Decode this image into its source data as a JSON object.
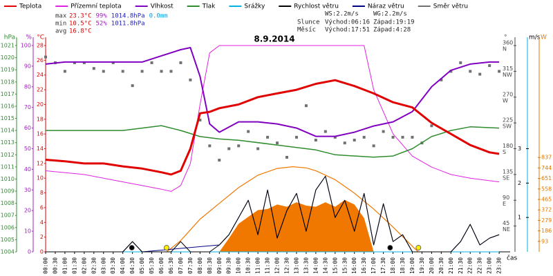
{
  "chart_data": {
    "type": "line",
    "title": "8.9.2014",
    "left_units": [
      "hPa",
      "%",
      "°C"
    ],
    "right_units": [
      "°",
      "m/s",
      "W"
    ],
    "xlabel": "čas",
    "stats": [
      {
        "label": "max",
        "items": [
          "23.3°C",
          "99%",
          "1014.8hPa",
          "0.0mm"
        ]
      },
      {
        "label": "min",
        "items": [
          "10.5°C",
          "52%",
          "1011.8hPa"
        ]
      },
      {
        "label": "avg",
        "items": [
          "16.8°C"
        ]
      }
    ],
    "info": {
      "ws": "WS:2.2m/s",
      "wg": "WG:2.2m/s",
      "sun_label": "Slunce",
      "sun_rise": "Východ:06:16",
      "sun_set": "Západ:19:19",
      "moon_label": "Měsíc",
      "moon_rise": "Východ:17:51",
      "moon_set": "Západ:4:28"
    },
    "xlim": [
      0,
      24
    ],
    "xticks": [
      {
        "value": 0,
        "label": "00:00"
      },
      {
        "value": 0.5,
        "label": "00:30"
      },
      {
        "value": 1,
        "label": "01:00"
      },
      {
        "value": 1.5,
        "label": "01:30"
      },
      {
        "value": 2,
        "label": "02:00"
      },
      {
        "value": 2.5,
        "label": "02:30"
      },
      {
        "value": 3,
        "label": "03:00"
      },
      {
        "value": 3.5,
        "label": "03:30"
      },
      {
        "value": 4,
        "label": "04:00"
      },
      {
        "value": 4.5,
        "label": "04:30"
      },
      {
        "value": 5,
        "label": "05:00"
      },
      {
        "value": 5.5,
        "label": "05:30"
      },
      {
        "value": 6,
        "label": "06:00"
      },
      {
        "value": 6.5,
        "label": "06:30"
      },
      {
        "value": 7,
        "label": "07:00"
      },
      {
        "value": 7.5,
        "label": "07:30"
      },
      {
        "value": 8,
        "label": "08:00"
      },
      {
        "value": 8.5,
        "label": "08:30"
      },
      {
        "value": 9,
        "label": "09:00"
      },
      {
        "value": 9.5,
        "label": "09:30"
      },
      {
        "value": 10,
        "label": "10:00"
      },
      {
        "value": 10.5,
        "label": "10:30"
      },
      {
        "value": 11,
        "label": "11:00"
      },
      {
        "value": 11.5,
        "label": "11:30"
      },
      {
        "value": 12,
        "label": "12:00"
      },
      {
        "value": 12.5,
        "label": "12:30"
      },
      {
        "value": 13,
        "label": "13:00"
      },
      {
        "value": 13.5,
        "label": "13:30"
      },
      {
        "value": 14,
        "label": "14:00"
      },
      {
        "value": 14.5,
        "label": "14:30"
      },
      {
        "value": 15,
        "label": "15:00"
      },
      {
        "value": 15.5,
        "label": "15:30"
      },
      {
        "value": 16,
        "label": "16:00"
      },
      {
        "value": 16.5,
        "label": "16:30"
      },
      {
        "value": 17,
        "label": "17:00"
      },
      {
        "value": 17.5,
        "label": "17:30"
      },
      {
        "value": 18,
        "label": "18:00"
      },
      {
        "value": 18.5,
        "label": "18:30"
      },
      {
        "value": 19,
        "label": "19:00"
      },
      {
        "value": 19.5,
        "label": "19:30"
      },
      {
        "value": 20,
        "label": "20:00"
      },
      {
        "value": 20.5,
        "label": "20:30"
      },
      {
        "value": 21,
        "label": "21:00"
      },
      {
        "value": 21.5,
        "label": "21:30"
      },
      {
        "value": 22,
        "label": "22:00"
      },
      {
        "value": 22.5,
        "label": "22:30"
      },
      {
        "value": 23,
        "label": "23:00"
      },
      {
        "value": 23.5,
        "label": "23:30"
      }
    ],
    "axes": {
      "hpa": {
        "lim": [
          1004,
          1021
        ],
        "ticks": [
          1004,
          1005,
          1006,
          1007,
          1008,
          1009,
          1010,
          1011,
          1012,
          1013,
          1014,
          1015,
          1016,
          1017,
          1018,
          1019,
          1020,
          1021
        ],
        "color": "#2e8b2e"
      },
      "pct": {
        "lim": [
          0,
          100
        ],
        "ticks": [
          0,
          10,
          20,
          30,
          40,
          50,
          60,
          70,
          80,
          90,
          100
        ],
        "color": "#a020c0"
      },
      "temp": {
        "lim": [
          0,
          28
        ],
        "ticks": [
          0,
          2,
          4,
          6,
          8,
          10,
          12,
          14,
          16,
          18,
          20,
          22,
          24,
          26,
          28
        ],
        "color": "#e00000"
      },
      "deg": {
        "lim": [
          0,
          360
        ],
        "ticks": [
          45,
          90,
          135,
          180,
          225,
          270,
          315,
          360
        ],
        "directions": [
          "NE",
          "E",
          "SE",
          "S",
          "SW",
          "W",
          "NW",
          "N"
        ],
        "color": "#444444"
      },
      "ms": {
        "lim": [
          0,
          6
        ],
        "ticks": [
          1,
          2,
          3
        ],
        "color": "#000000"
      },
      "w": {
        "lim": [
          0,
          1830
        ],
        "ticks": [
          93,
          186,
          279,
          372,
          465,
          558,
          651,
          744,
          837
        ],
        "color": "#e07800"
      }
    },
    "series": [
      {
        "name": "Teplota",
        "color": "#e00000",
        "axis": "temp",
        "width": 3,
        "x": [
          0,
          1,
          2,
          3,
          4,
          5,
          6,
          6.5,
          7,
          7.5,
          8,
          8.5,
          9,
          10,
          11,
          12,
          13,
          14,
          15,
          16,
          17,
          18,
          19,
          20,
          21,
          22,
          23,
          23.5
        ],
        "values": [
          12.5,
          12.3,
          12,
          12,
          11.6,
          11.3,
          10.8,
          10.5,
          11,
          14,
          18.8,
          19,
          19.5,
          20,
          21,
          21.5,
          22,
          22.8,
          23.3,
          22.5,
          21.5,
          20.3,
          19.6,
          17.5,
          16,
          14.5,
          13.5,
          13.3
        ]
      },
      {
        "name": "Přízemní teplota",
        "color": "#e020e0",
        "axis": "temp",
        "width": 1,
        "x": [
          0,
          2,
          4,
          5,
          6,
          6.5,
          7,
          7.5,
          8,
          8.5,
          9,
          12,
          16,
          16.5,
          17,
          18,
          19,
          20,
          21,
          22,
          23.5
        ],
        "values": [
          11,
          10.5,
          9.5,
          9,
          8.5,
          8.2,
          9,
          12,
          20,
          27,
          28,
          28,
          28,
          28,
          22,
          16,
          13,
          11.5,
          10.5,
          10,
          9.5
        ]
      },
      {
        "name": "Vlhkost",
        "color": "#8000c0",
        "axis": "pct",
        "width": 2,
        "x": [
          0,
          1,
          2,
          3,
          4,
          5,
          6,
          7,
          7.5,
          8,
          8.5,
          9,
          10,
          11,
          12,
          13,
          14,
          15,
          16,
          17,
          18,
          19,
          20,
          21,
          22,
          23,
          23.5
        ],
        "values": [
          91,
          92,
          92,
          92,
          92,
          92,
          95,
          98,
          99,
          85,
          62,
          58,
          63,
          63,
          62,
          60,
          56,
          56,
          58,
          61,
          63,
          68,
          80,
          88,
          91,
          92,
          92
        ]
      },
      {
        "name": "Tlak",
        "color": "#2e8b2e",
        "axis": "hpa",
        "width": 1.5,
        "x": [
          0,
          2,
          4,
          5,
          6,
          7,
          8,
          9,
          10,
          12,
          14,
          15,
          17,
          18,
          19,
          20,
          21,
          22,
          23.5
        ],
        "values": [
          1014,
          1014,
          1014,
          1014.2,
          1014.4,
          1014,
          1013.5,
          1013.3,
          1013.2,
          1012.8,
          1012.4,
          1012,
          1011.8,
          1011.9,
          1012.5,
          1013.5,
          1014,
          1014.3,
          1014.2
        ]
      },
      {
        "name": "Srážky",
        "color": "#00b0e0",
        "axis": "ms",
        "width": 1,
        "x": [
          0,
          23.5
        ],
        "values": [
          0,
          0
        ]
      },
      {
        "name": "Rychlost větru",
        "color": "#000000",
        "axis": "ms",
        "width": 1,
        "x": [
          0,
          0.5,
          1,
          1.5,
          2,
          2.5,
          3,
          3.5,
          4,
          4.5,
          5,
          5.5,
          6,
          6.5,
          7,
          7.5,
          8,
          8.5,
          9,
          9.5,
          10,
          10.5,
          11,
          11.5,
          12,
          12.5,
          13,
          13.5,
          14,
          14.5,
          15,
          15.5,
          16,
          16.5,
          17,
          17.5,
          18,
          18.5,
          19,
          19.5,
          20,
          20.5,
          21,
          21.5,
          22,
          22.5,
          23,
          23.5
        ],
        "values": [
          0,
          0,
          0,
          0,
          0,
          0,
          0,
          0,
          0,
          0.3,
          0,
          0,
          0,
          0,
          0.3,
          0,
          0,
          0,
          0.2,
          0.5,
          1,
          1.5,
          0.5,
          1.8,
          0.4,
          1.2,
          1.7,
          0.6,
          1.8,
          2.2,
          1,
          1.5,
          0.6,
          1.7,
          0.2,
          1.4,
          0.3,
          0.5,
          0,
          0,
          0,
          0,
          0,
          0.3,
          0.8,
          0.2,
          0.4,
          0.5
        ]
      },
      {
        "name": "Náraz větru",
        "color": "#000080",
        "axis": "ms",
        "width": 1,
        "x": [
          0,
          4,
          4.5,
          5,
          9,
          9.5,
          10,
          10.5,
          11,
          11.5,
          12,
          12.5,
          13,
          13.5,
          14,
          14.5,
          15,
          15.5,
          16,
          16.5,
          17,
          17.5,
          18,
          18.5,
          19,
          21,
          21.5,
          22,
          22.5,
          23,
          23.5
        ],
        "values": [
          0,
          0,
          0.3,
          0,
          0.2,
          0.5,
          1,
          1.5,
          0.5,
          1.8,
          0.4,
          1.2,
          1.7,
          0.6,
          1.8,
          2.2,
          1,
          1.5,
          0.6,
          1.7,
          0.2,
          1.4,
          0.3,
          0.5,
          0,
          0,
          0.3,
          0.8,
          0.2,
          0.4,
          0.5
        ]
      },
      {
        "name": "Směr větru",
        "color": "#707070",
        "axis": "deg",
        "kind": "scatter",
        "x": [
          0,
          0.5,
          1,
          1.5,
          2,
          2.5,
          3,
          3.5,
          4,
          4.5,
          5,
          5.5,
          6,
          6.5,
          7,
          7.5,
          8,
          8.5,
          9,
          9.5,
          10,
          10.5,
          11,
          11.5,
          12,
          12.5,
          13,
          13.5,
          14,
          14.5,
          15,
          15.5,
          16,
          16.5,
          17,
          17.5,
          18,
          18.5,
          19,
          19.5,
          20,
          20.5,
          21,
          21.5,
          22,
          22.5,
          23,
          23.5
        ],
        "values": [
          340,
          330,
          315,
          330,
          330,
          320,
          315,
          330,
          315,
          290,
          315,
          330,
          315,
          315,
          330,
          300,
          230,
          185,
          160,
          180,
          185,
          210,
          180,
          200,
          190,
          165,
          200,
          255,
          195,
          210,
          200,
          190,
          195,
          200,
          185,
          210,
          200,
          200,
          200,
          190,
          220,
          300,
          315,
          330,
          315,
          310,
          325,
          315
        ]
      }
    ],
    "radiation": {
      "color": "#f07800",
      "theoretical": {
        "x": [
          6.27,
          7,
          8,
          9,
          10,
          11,
          12,
          12.8,
          13.5,
          14,
          15,
          16,
          17,
          18,
          19,
          19.3
        ],
        "values": [
          0,
          100,
          290,
          430,
          570,
          680,
          740,
          755,
          745,
          720,
          640,
          520,
          380,
          220,
          50,
          0
        ]
      },
      "measured": {
        "x": [
          9,
          9.5,
          10,
          10.5,
          11,
          11.5,
          12,
          12.5,
          13,
          13.5,
          14,
          14.5,
          15,
          15.5,
          16,
          16.5,
          17
        ],
        "values": [
          0,
          120,
          250,
          310,
          370,
          380,
          420,
          400,
          440,
          410,
          400,
          440,
          400,
          460,
          420,
          300,
          0
        ]
      }
    }
  }
}
